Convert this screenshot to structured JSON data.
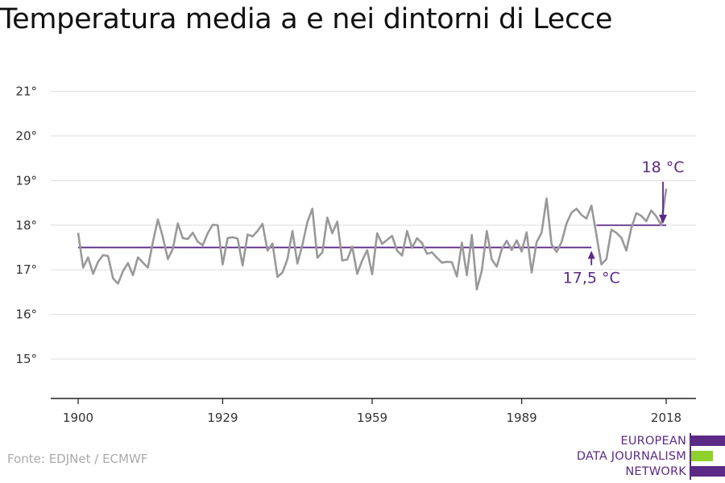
{
  "title": "Temperatura media a e nei dintorni di Lecce",
  "source": "Fonte: EDJNet / ECMWF",
  "logo": {
    "lines": [
      "EUROPEAN",
      "DATA JOURNALISM",
      "NETWORK"
    ],
    "colors": [
      "#5b2a86",
      "#8fd12b",
      "#5b2a86"
    ]
  },
  "colors": {
    "line": "#999999",
    "accent": "#5b2a86",
    "grid": "#dddddd"
  },
  "chart_data": {
    "type": "line",
    "title": "Temperatura media a e nei dintorni di Lecce",
    "xlabel": "",
    "ylabel": "",
    "xlim": [
      1900,
      2018
    ],
    "ylim": [
      14.2,
      21.8
    ],
    "xticks": [
      1900,
      1929,
      1959,
      1989,
      2018
    ],
    "xtick_labels": [
      "1900",
      "1929",
      "1959",
      "1989",
      "2018"
    ],
    "yticks": [
      15,
      16,
      17,
      18,
      19,
      20,
      21
    ],
    "ytick_labels": [
      "15°",
      "16°",
      "17°",
      "18°",
      "19°",
      "20°",
      "21°"
    ],
    "grid": true,
    "series": [
      {
        "x": [
          1900,
          1901,
          1902,
          1903,
          1904,
          1905,
          1906,
          1907,
          1908,
          1909,
          1910,
          1911,
          1912,
          1913,
          1914,
          1915,
          1916,
          1917,
          1918,
          1919,
          1920,
          1921,
          1922,
          1923,
          1924,
          1925,
          1926,
          1927,
          1928,
          1929,
          1930,
          1931,
          1932,
          1933,
          1934,
          1935,
          1936,
          1937,
          1938,
          1939,
          1940,
          1941,
          1942,
          1943,
          1944,
          1945,
          1946,
          1947,
          1948,
          1949,
          1950,
          1951,
          1952,
          1953,
          1954,
          1955,
          1956,
          1957,
          1958,
          1959,
          1960,
          1961,
          1962,
          1963,
          1964,
          1965,
          1966,
          1967,
          1968,
          1969,
          1970,
          1971,
          1972,
          1973,
          1974,
          1975,
          1976,
          1977,
          1978,
          1979,
          1980,
          1981,
          1982,
          1983,
          1984,
          1985,
          1986,
          1987,
          1988,
          1989,
          1990,
          1991,
          1992,
          1993,
          1994,
          1995,
          1996,
          1997,
          1998,
          1999,
          2000,
          2001,
          2002,
          2003,
          2004,
          2005,
          2006,
          2007,
          2008,
          2009,
          2010,
          2011,
          2012,
          2013,
          2014,
          2015,
          2016,
          2017,
          2018
        ],
        "values": [
          17.83,
          17.05,
          17.28,
          16.91,
          17.18,
          17.33,
          17.31,
          16.81,
          16.69,
          16.97,
          17.15,
          16.88,
          17.28,
          17.16,
          17.05,
          17.62,
          18.13,
          17.73,
          17.24,
          17.47,
          18.04,
          17.71,
          17.69,
          17.83,
          17.63,
          17.55,
          17.82,
          18.01,
          18.0,
          17.12,
          17.71,
          17.73,
          17.7,
          17.1,
          17.79,
          17.75,
          17.87,
          18.03,
          17.43,
          17.59,
          16.84,
          16.94,
          17.24,
          17.87,
          17.14,
          17.56,
          18.07,
          18.37,
          17.27,
          17.39,
          18.17,
          17.82,
          18.08,
          17.21,
          17.23,
          17.52,
          16.91,
          17.21,
          17.44,
          16.9,
          17.82,
          17.58,
          17.67,
          17.76,
          17.43,
          17.32,
          17.87,
          17.49,
          17.71,
          17.6,
          17.36,
          17.39,
          17.27,
          17.16,
          17.18,
          17.17,
          16.85,
          17.61,
          16.88,
          17.78,
          16.56,
          16.98,
          17.87,
          17.23,
          17.07,
          17.46,
          17.65,
          17.44,
          17.66,
          17.41,
          17.84,
          16.94,
          17.62,
          17.83,
          18.6,
          17.57,
          17.4,
          17.62,
          18.04,
          18.28,
          18.37,
          18.23,
          18.15,
          18.44,
          17.78,
          17.12,
          17.24,
          17.9,
          17.83,
          17.72,
          17.43,
          17.93,
          18.27,
          18.21,
          18.09,
          18.33,
          18.2,
          18.0,
          18.82
        ]
      }
    ],
    "reference_lines": [
      {
        "x0": 1900,
        "x1": 2000,
        "value": 17.5,
        "label": "17,5 °C"
      },
      {
        "x0": 2000,
        "x1": 2018,
        "value": 18.0,
        "label": "18 °C"
      }
    ]
  }
}
